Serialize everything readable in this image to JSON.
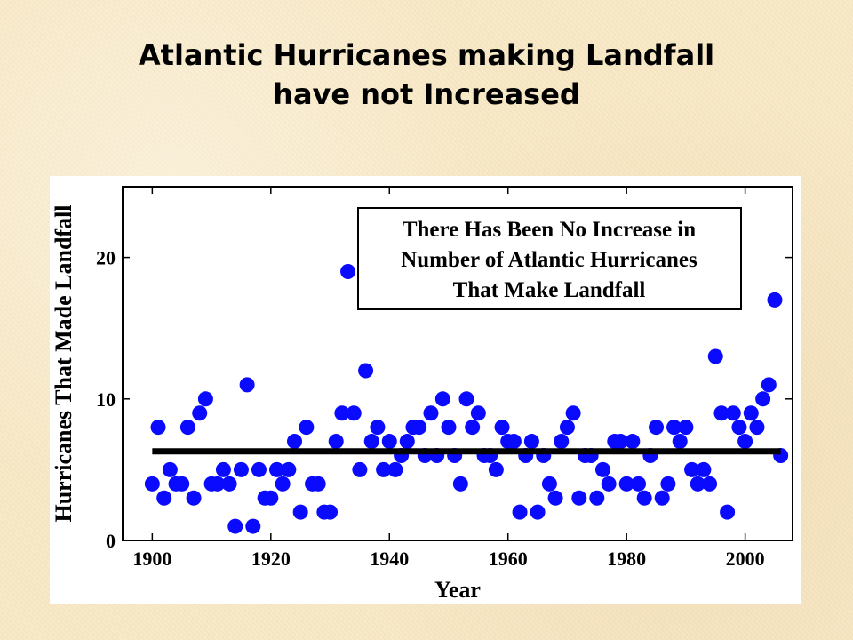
{
  "slide": {
    "title_line1": "Atlantic Hurricanes making Landfall",
    "title_line2": "have not Increased"
  },
  "colors": {
    "background": "#f8e8c4",
    "marker": "#0a0aff",
    "trend_line": "#000000"
  },
  "chart_data": {
    "type": "scatter",
    "title": "",
    "xlabel": "Year",
    "ylabel": "Hurricanes That Made Landfall",
    "annotation": [
      "There Has Been No Increase in",
      "Number of Atlantic Hurricanes",
      "That Make Landfall"
    ],
    "xlim": [
      1895,
      2008
    ],
    "ylim": [
      0,
      25
    ],
    "xticks": [
      1900,
      1920,
      1940,
      1960,
      1980,
      2000
    ],
    "yticks": [
      0,
      10,
      20
    ],
    "grid": false,
    "trend": {
      "type": "mean",
      "x": [
        1900,
        2006
      ],
      "y": [
        6.3,
        6.3
      ]
    },
    "series": [
      {
        "name": "",
        "x": [
          1900,
          1901,
          1902,
          1903,
          1904,
          1905,
          1906,
          1907,
          1908,
          1909,
          1910,
          1911,
          1912,
          1913,
          1914,
          1915,
          1916,
          1917,
          1918,
          1919,
          1920,
          1921,
          1922,
          1923,
          1924,
          1925,
          1926,
          1927,
          1928,
          1929,
          1930,
          1931,
          1932,
          1933,
          1934,
          1935,
          1936,
          1937,
          1938,
          1939,
          1940,
          1941,
          1942,
          1943,
          1944,
          1945,
          1946,
          1947,
          1948,
          1949,
          1950,
          1951,
          1952,
          1953,
          1954,
          1955,
          1956,
          1957,
          1958,
          1959,
          1960,
          1961,
          1962,
          1963,
          1964,
          1965,
          1966,
          1967,
          1968,
          1969,
          1970,
          1971,
          1972,
          1973,
          1974,
          1975,
          1976,
          1977,
          1978,
          1979,
          1980,
          1981,
          1982,
          1983,
          1984,
          1985,
          1986,
          1987,
          1988,
          1989,
          1990,
          1991,
          1992,
          1993,
          1994,
          1995,
          1996,
          1997,
          1998,
          1999,
          2000,
          2001,
          2002,
          2003,
          2004,
          2005,
          2006
        ],
        "y": [
          4,
          8,
          3,
          5,
          4,
          4,
          8,
          3,
          9,
          10,
          4,
          4,
          5,
          4,
          1,
          5,
          11,
          1,
          5,
          3,
          3,
          5,
          4,
          5,
          7,
          2,
          8,
          4,
          4,
          2,
          2,
          7,
          9,
          19,
          9,
          5,
          12,
          7,
          8,
          5,
          7,
          5,
          6,
          7,
          8,
          8,
          6,
          9,
          6,
          10,
          8,
          6,
          4,
          10,
          8,
          9,
          6,
          6,
          5,
          8,
          7,
          7,
          2,
          6,
          7,
          2,
          6,
          4,
          3,
          7,
          8,
          9,
          3,
          6,
          6,
          3,
          5,
          4,
          7,
          7,
          4,
          7,
          4,
          3,
          6,
          8,
          3,
          4,
          8,
          7,
          8,
          5,
          4,
          5,
          4,
          13,
          9,
          2,
          9,
          8,
          7,
          9,
          8,
          10,
          11,
          17,
          6
        ]
      }
    ]
  }
}
